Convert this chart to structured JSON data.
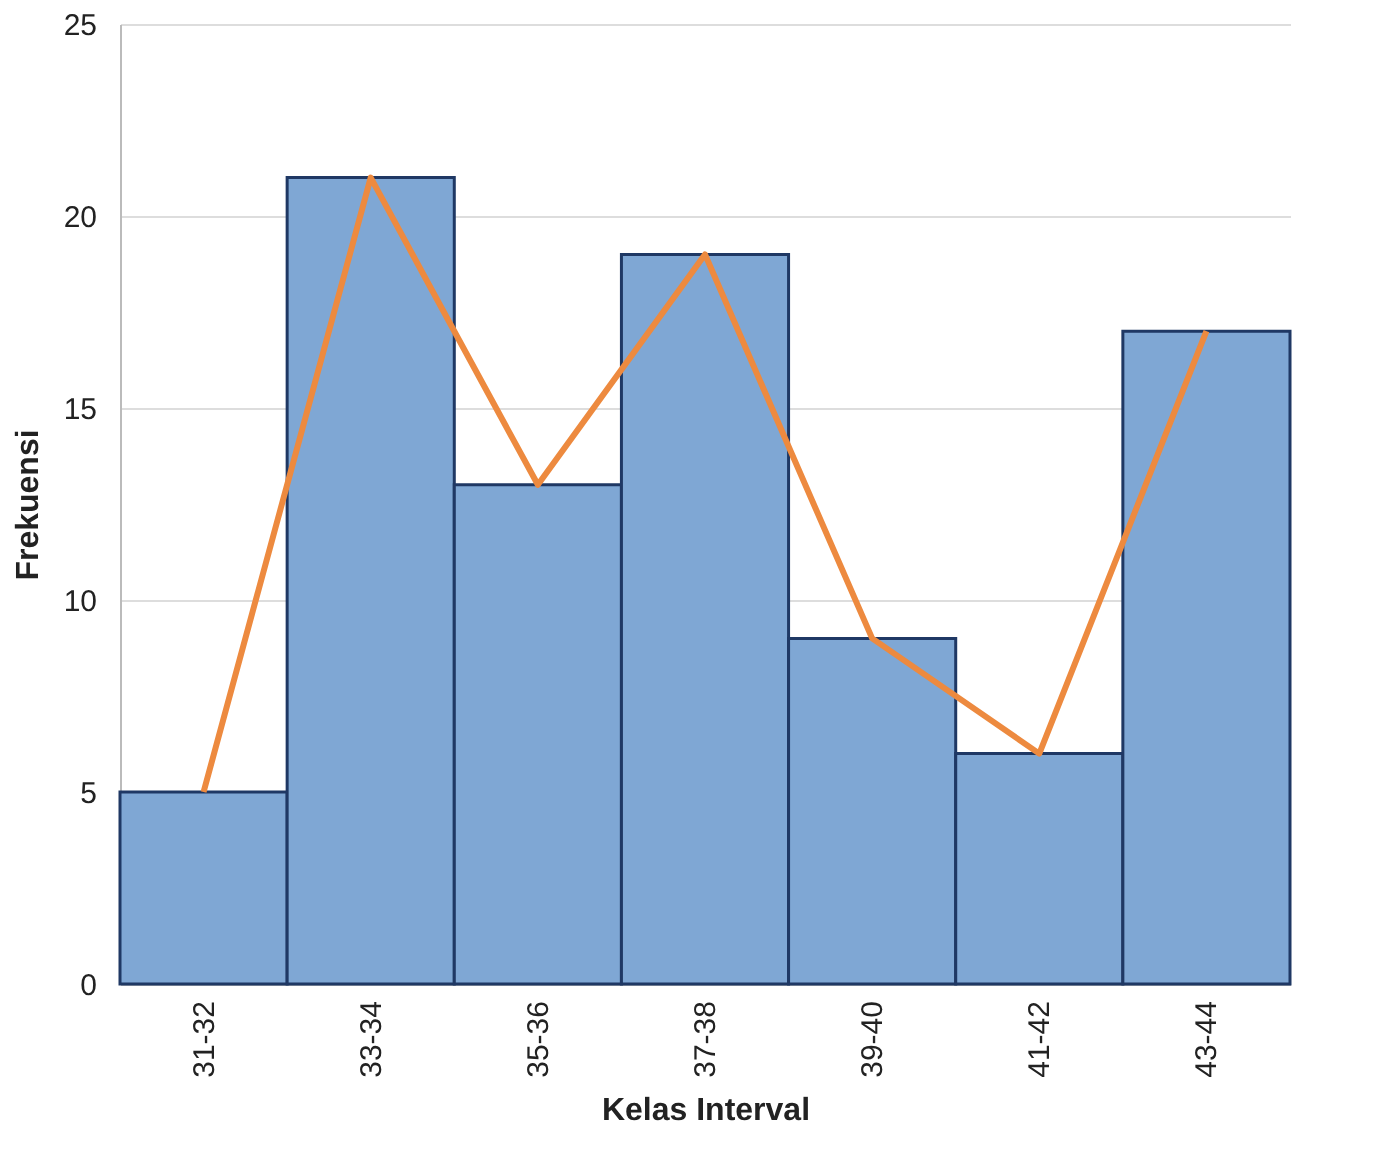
{
  "chart_data": {
    "type": "bar",
    "xlabel": "Kelas Interval",
    "ylabel": "Frekuensi",
    "categories": [
      "31-32",
      "33-34",
      "35-36",
      "37-38",
      "39-40",
      "41-42",
      "43-44"
    ],
    "series": [
      {
        "color": "#7fa7d4",
        "values": [
          5,
          21,
          13,
          19,
          9,
          6,
          17
        ]
      },
      {
        "type": "line",
        "color": "#ed8a3f",
        "values": [
          5,
          21,
          13,
          19,
          9,
          6,
          17
        ]
      }
    ],
    "ylim": [
      0,
      25
    ],
    "yticks": [
      0,
      5,
      10,
      15,
      20,
      25
    ],
    "grid": "y"
  }
}
